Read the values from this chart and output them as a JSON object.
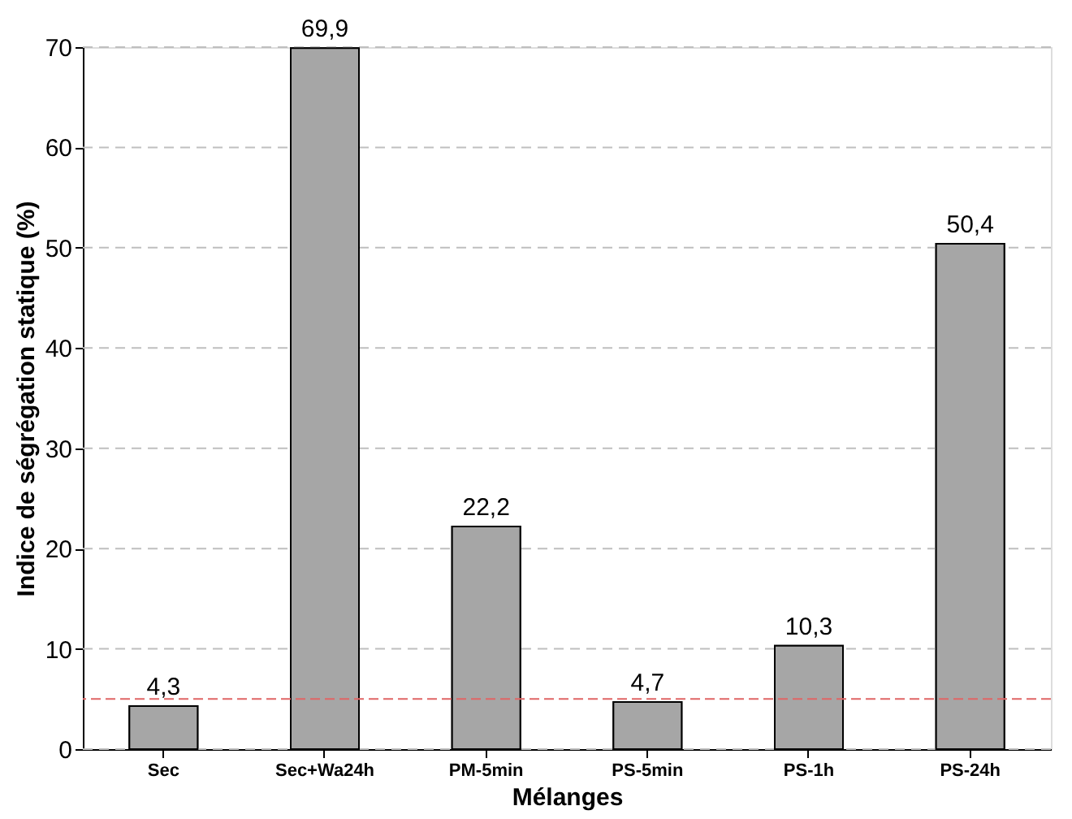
{
  "chart_data": {
    "type": "bar",
    "xlabel": "Mélanges",
    "ylabel": "Indice de ségrégation statique (%)",
    "categories": [
      "Sec",
      "Sec+Wa24h",
      "PM-5min",
      "PS-5min",
      "PS-1h",
      "PS-24h"
    ],
    "values": [
      4.3,
      69.9,
      22.2,
      4.7,
      10.3,
      50.4
    ],
    "value_labels": [
      "4,3",
      "69,9",
      "22,2",
      "4,7",
      "10,3",
      "50,4"
    ],
    "color": "#a6a6a6",
    "ylim": [
      0,
      70
    ],
    "yticks": [
      0,
      10,
      20,
      30,
      40,
      50,
      60,
      70
    ],
    "grid": "y",
    "ref_lines": [
      {
        "axis": "y",
        "value": 5,
        "color": "#e06666",
        "line_style": "dashed"
      }
    ]
  }
}
